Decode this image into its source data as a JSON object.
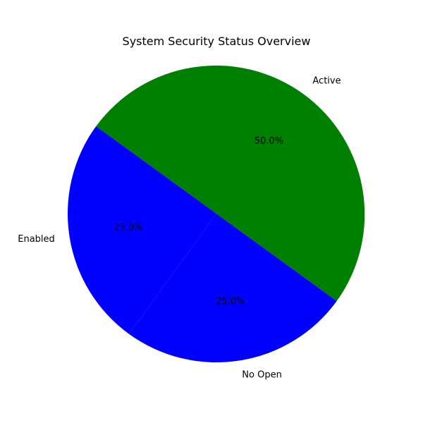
{
  "chart_data": {
    "type": "pie",
    "title": "System Security Status Overview",
    "labels": [
      "Enabled",
      "No Open",
      "Active"
    ],
    "values": [
      25.0,
      25.0,
      50.0
    ],
    "percent_labels": [
      "25.0%",
      "25.0%",
      "50.0%"
    ],
    "colors": [
      "#0000ff",
      "#0000ff",
      "#008000"
    ],
    "start_angle_deg": 144,
    "direction": "counterclockwise",
    "legend": "none"
  }
}
